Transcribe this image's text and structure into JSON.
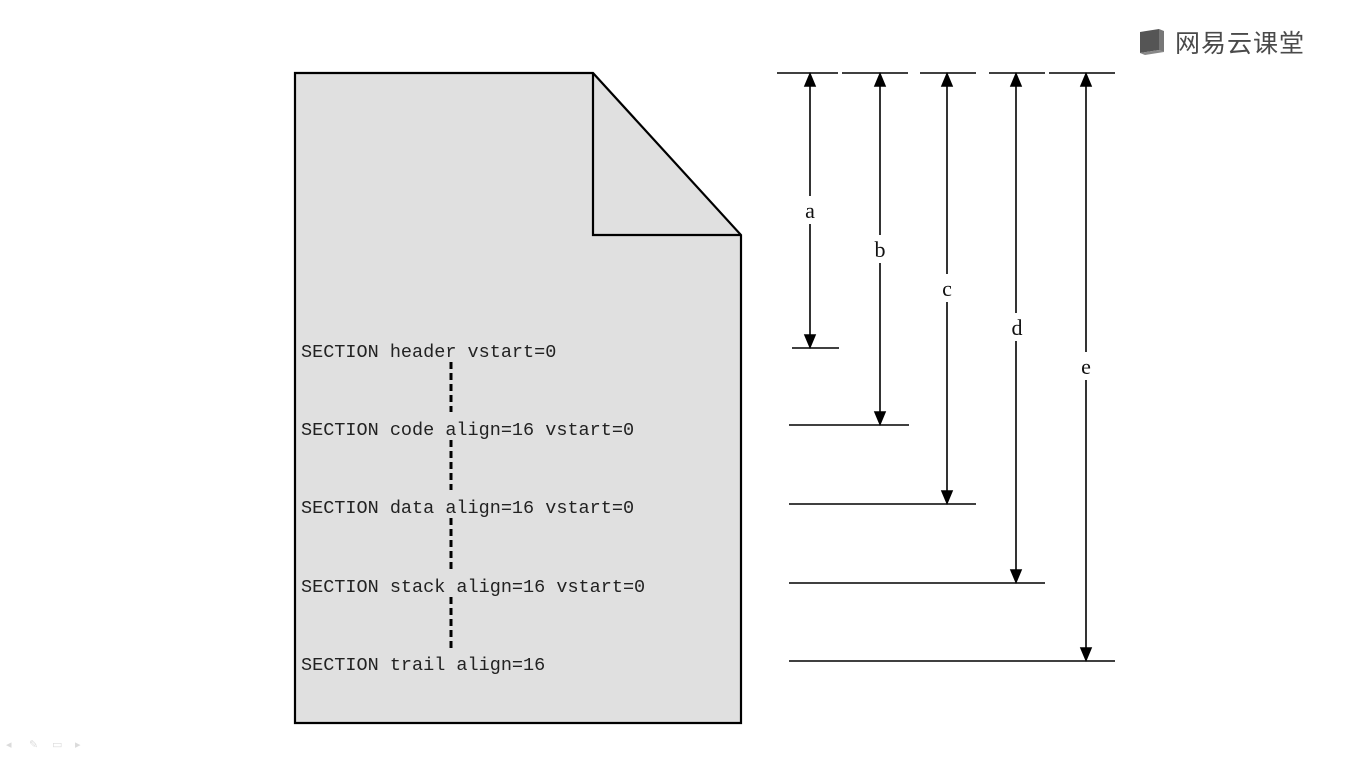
{
  "watermark": {
    "text": "网易云课堂",
    "icon": "book-icon",
    "color": "#4a4a4a"
  },
  "document": {
    "fill_color": "#e0e0e0",
    "stroke_color": "#000000",
    "sections": [
      {
        "name": "header",
        "text": "SECTION header vstart=0"
      },
      {
        "name": "code",
        "text": "SECTION code align=16 vstart=0"
      },
      {
        "name": "data",
        "text": "SECTION data align=16 vstart=0"
      },
      {
        "name": "stack",
        "text": "SECTION stack align=16 vstart=0"
      },
      {
        "name": "trail",
        "text": "SECTION trail align=16"
      }
    ]
  },
  "dimensions": [
    {
      "label": "a",
      "to_section": "header"
    },
    {
      "label": "b",
      "to_section": "code"
    },
    {
      "label": "c",
      "to_section": "data"
    },
    {
      "label": "d",
      "to_section": "stack"
    },
    {
      "label": "e",
      "to_section": "trail"
    }
  ],
  "player_controls": [
    "back-icon",
    "pen-icon",
    "screen-icon",
    "forward-icon"
  ]
}
